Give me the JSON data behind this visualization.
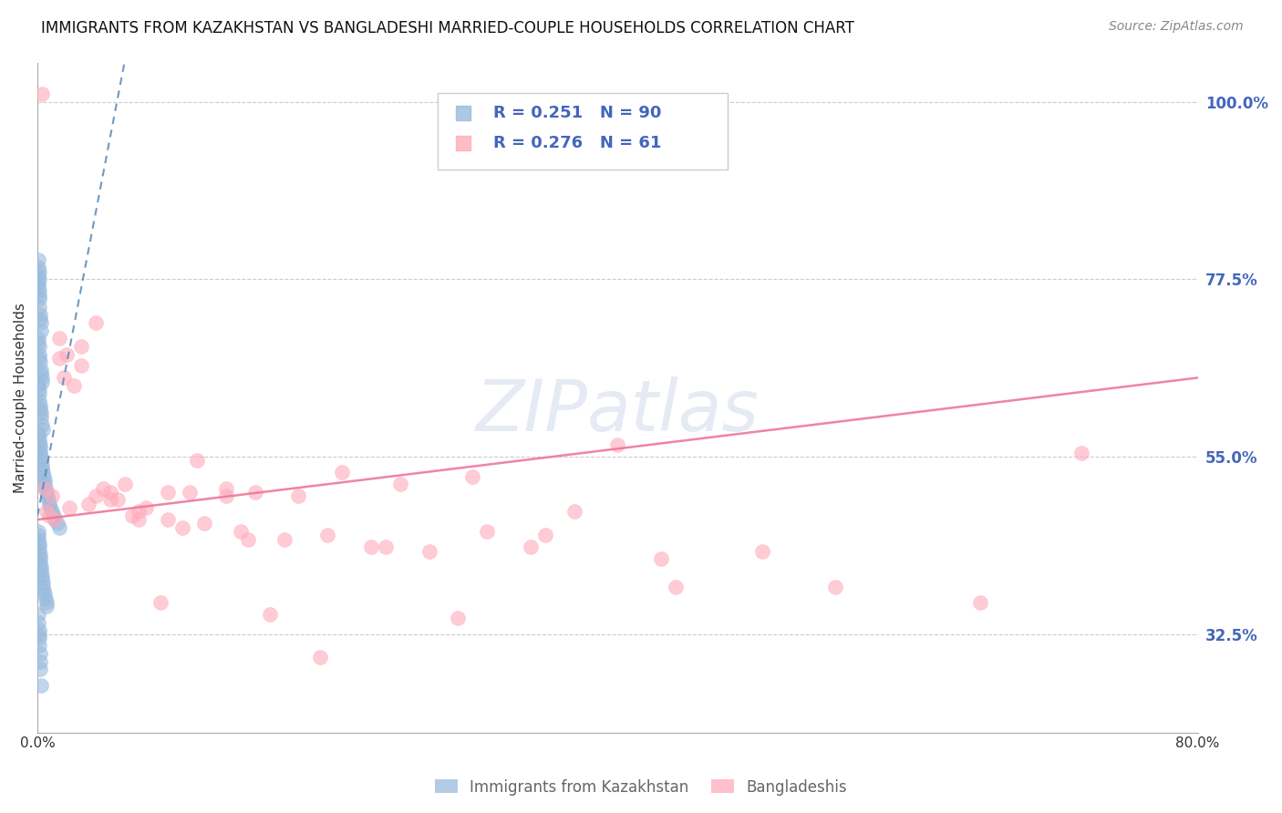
{
  "title": "IMMIGRANTS FROM KAZAKHSTAN VS BANGLADESHI MARRIED-COUPLE HOUSEHOLDS CORRELATION CHART",
  "source": "Source: ZipAtlas.com",
  "ylabel": "Married-couple Households",
  "right_yticks": [
    100.0,
    77.5,
    55.0,
    32.5
  ],
  "right_ytick_labels": [
    "100.0%",
    "77.5%",
    "55.0%",
    "32.5%"
  ],
  "watermark": "ZIPatlas",
  "legend_blue_r": "0.251",
  "legend_blue_n": "90",
  "legend_pink_r": "0.276",
  "legend_pink_n": "61",
  "blue_color": "#99BBDD",
  "pink_color": "#FFAABB",
  "blue_line_color": "#5588BB",
  "pink_line_color": "#EE7799",
  "xmin": 0.0,
  "xmax": 80.0,
  "ymin": 20.0,
  "ymax": 105.0,
  "blue_dots_x": [
    0.05,
    0.08,
    0.06,
    0.1,
    0.12,
    0.04,
    0.07,
    0.09,
    0.11,
    0.13,
    0.15,
    0.18,
    0.2,
    0.22,
    0.25,
    0.05,
    0.08,
    0.1,
    0.12,
    0.15,
    0.18,
    0.22,
    0.25,
    0.28,
    0.3,
    0.06,
    0.09,
    0.11,
    0.14,
    0.17,
    0.2,
    0.23,
    0.27,
    0.31,
    0.35,
    0.07,
    0.1,
    0.13,
    0.16,
    0.19,
    0.21,
    0.24,
    0.26,
    0.29,
    0.33,
    0.38,
    0.42,
    0.47,
    0.52,
    0.58,
    0.63,
    0.7,
    0.75,
    0.8,
    0.9,
    1.0,
    1.1,
    1.2,
    1.35,
    1.5,
    0.04,
    0.06,
    0.08,
    0.1,
    0.12,
    0.14,
    0.16,
    0.18,
    0.2,
    0.23,
    0.26,
    0.29,
    0.32,
    0.36,
    0.4,
    0.45,
    0.5,
    0.55,
    0.6,
    0.65,
    0.05,
    0.07,
    0.09,
    0.11,
    0.13,
    0.15,
    0.17,
    0.19,
    0.21,
    0.24
  ],
  "blue_dots_y": [
    80.0,
    79.0,
    78.0,
    78.5,
    77.5,
    77.0,
    76.5,
    76.0,
    75.0,
    75.5,
    74.0,
    73.0,
    72.5,
    72.0,
    71.0,
    70.0,
    69.5,
    69.0,
    68.0,
    67.5,
    67.0,
    66.0,
    65.5,
    65.0,
    64.5,
    64.0,
    63.5,
    63.0,
    62.0,
    61.5,
    61.0,
    60.5,
    60.0,
    59.0,
    58.5,
    58.0,
    57.5,
    57.0,
    56.5,
    56.0,
    55.5,
    55.0,
    54.5,
    54.0,
    53.5,
    53.0,
    52.5,
    52.0,
    51.5,
    51.0,
    50.5,
    50.0,
    49.5,
    49.0,
    48.5,
    48.0,
    47.5,
    47.0,
    46.5,
    46.0,
    45.5,
    45.0,
    44.5,
    44.0,
    43.5,
    43.0,
    42.5,
    42.0,
    41.5,
    41.0,
    40.5,
    40.0,
    39.5,
    39.0,
    38.5,
    38.0,
    37.5,
    37.0,
    36.5,
    36.0,
    35.0,
    34.0,
    33.0,
    32.5,
    32.0,
    31.0,
    30.0,
    29.0,
    28.0,
    26.0
  ],
  "pink_dots_x": [
    0.5,
    1.0,
    1.5,
    2.0,
    3.0,
    4.0,
    5.0,
    6.0,
    7.5,
    9.0,
    11.0,
    13.0,
    15.0,
    18.0,
    21.0,
    25.0,
    30.0,
    35.0,
    40.0,
    50.0,
    0.8,
    1.5,
    2.5,
    4.0,
    5.5,
    7.0,
    9.0,
    11.5,
    14.0,
    17.0,
    20.0,
    23.0,
    27.0,
    31.0,
    37.0,
    43.0,
    55.0,
    65.0,
    72.0,
    0.3,
    1.2,
    2.2,
    3.5,
    5.0,
    6.5,
    8.5,
    10.5,
    13.0,
    16.0,
    19.5,
    24.0,
    29.0,
    34.0,
    44.0,
    0.6,
    1.8,
    3.0,
    4.5,
    7.0,
    10.0,
    14.5
  ],
  "pink_dots_y": [
    51.0,
    50.0,
    70.0,
    68.0,
    66.5,
    72.0,
    49.5,
    51.5,
    48.5,
    50.5,
    54.5,
    51.0,
    50.5,
    50.0,
    53.0,
    51.5,
    52.5,
    45.0,
    56.5,
    43.0,
    47.5,
    67.5,
    64.0,
    50.0,
    49.5,
    48.0,
    47.0,
    46.5,
    45.5,
    44.5,
    45.0,
    43.5,
    43.0,
    45.5,
    48.0,
    42.0,
    38.5,
    36.5,
    55.5,
    101.0,
    47.0,
    48.5,
    49.0,
    50.5,
    47.5,
    36.5,
    50.5,
    50.0,
    35.0,
    29.5,
    43.5,
    34.5,
    43.5,
    38.5,
    48.0,
    65.0,
    69.0,
    51.0,
    47.0,
    46.0,
    44.5
  ],
  "blue_trend_x0": 0.0,
  "blue_trend_y0": 47.5,
  "blue_trend_x1": 6.0,
  "blue_trend_y1": 105.0,
  "pink_trend_x0": 0.0,
  "pink_trend_y0": 47.0,
  "pink_trend_x1": 80.0,
  "pink_trend_y1": 65.0
}
